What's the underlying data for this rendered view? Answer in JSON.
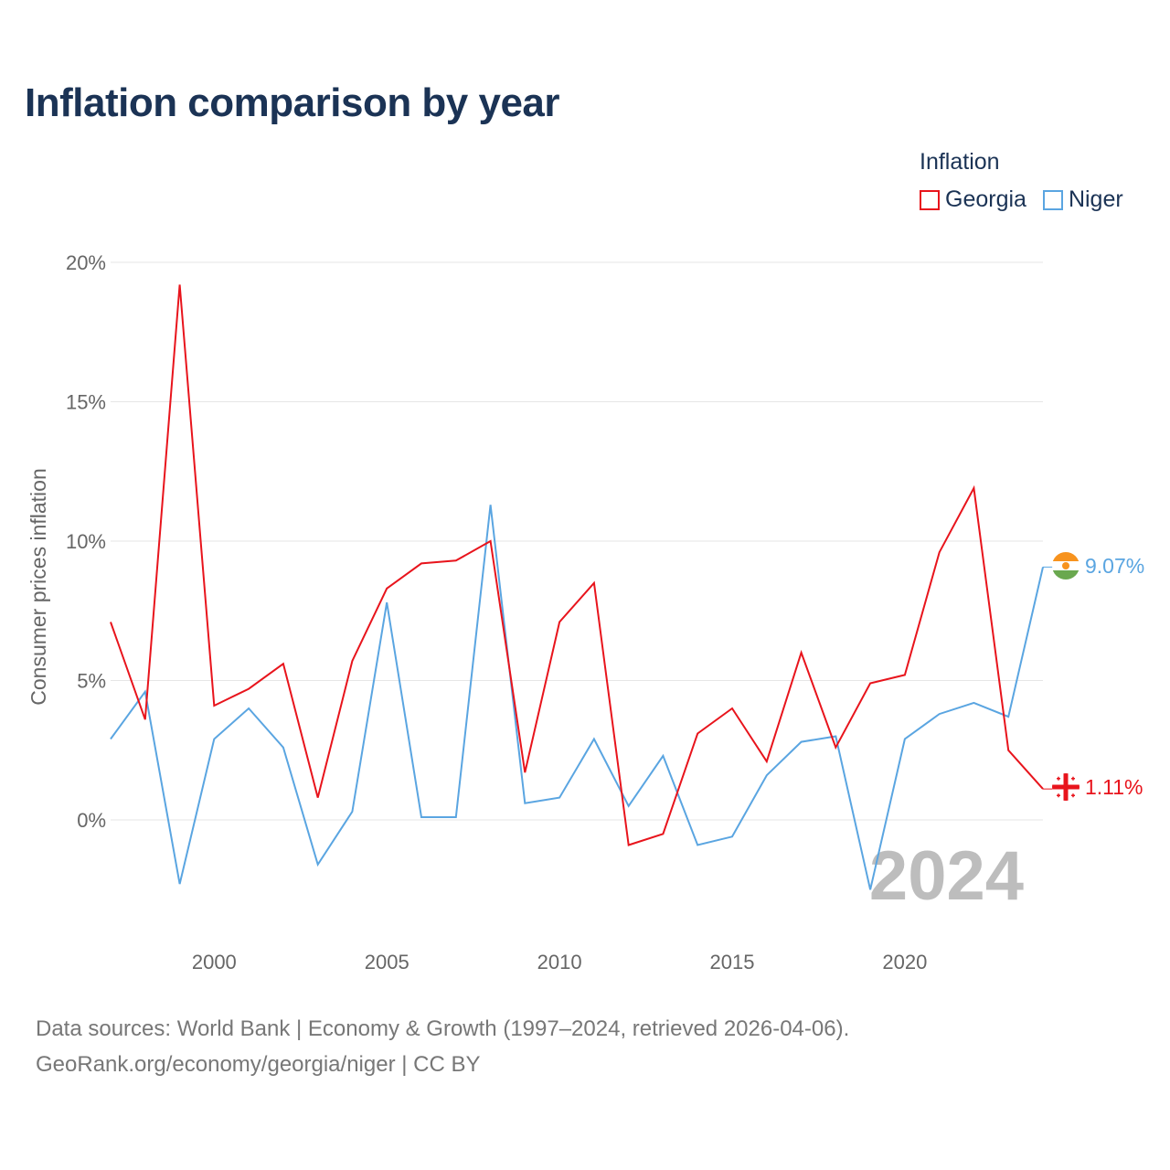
{
  "title": "Inflation comparison by year",
  "legend": {
    "title": "Inflation",
    "items": [
      {
        "label": "Georgia",
        "color": "#e8141c"
      },
      {
        "label": "Niger",
        "color": "#5aa5e1"
      }
    ]
  },
  "sources": {
    "line1": "Data sources: World Bank | Economy & Growth (1997–2024, retrieved 2026-04-06).",
    "line2": "GeoRank.org/economy/georgia/niger | CC BY"
  },
  "chart_data": {
    "type": "line",
    "title": "Inflation comparison by year",
    "xlabel": "",
    "ylabel": "Consumer prices inflation",
    "x": [
      1997,
      1998,
      1999,
      2000,
      2001,
      2002,
      2003,
      2004,
      2005,
      2006,
      2007,
      2008,
      2009,
      2010,
      2011,
      2012,
      2013,
      2014,
      2015,
      2016,
      2017,
      2018,
      2019,
      2020,
      2021,
      2022,
      2023,
      2024
    ],
    "xlim": [
      1997,
      2024
    ],
    "ylim": [
      -3.5,
      20.5
    ],
    "x_ticks": [
      2000,
      2005,
      2010,
      2015,
      2020
    ],
    "x_tick_labels": [
      "2000",
      "2005",
      "2010",
      "2015",
      "2020"
    ],
    "y_ticks": [
      0,
      5,
      10,
      15,
      20
    ],
    "y_tick_labels": [
      "0%",
      "5%",
      "10%",
      "15%",
      "20%"
    ],
    "grid": true,
    "legend_position": "top-right",
    "current_year_label": "2024",
    "series": [
      {
        "name": "Georgia",
        "color": "#e8141c",
        "values": [
          7.1,
          3.6,
          19.2,
          4.1,
          4.7,
          5.6,
          0.8,
          5.7,
          8.3,
          9.2,
          9.3,
          10.0,
          1.7,
          7.1,
          8.5,
          -0.9,
          -0.5,
          3.1,
          4.0,
          2.1,
          6.0,
          2.6,
          4.9,
          5.2,
          9.6,
          11.9,
          2.5,
          1.11
        ],
        "end_label": "1.11%"
      },
      {
        "name": "Niger",
        "color": "#5aa5e1",
        "values": [
          2.9,
          4.6,
          -2.3,
          2.9,
          4.0,
          2.6,
          -1.6,
          0.3,
          7.8,
          0.1,
          0.1,
          11.3,
          0.6,
          0.8,
          2.9,
          0.5,
          2.3,
          -0.9,
          -0.6,
          1.6,
          2.8,
          3.0,
          -2.5,
          2.9,
          3.8,
          4.2,
          3.7,
          9.07
        ],
        "end_label": "9.07%"
      }
    ]
  }
}
